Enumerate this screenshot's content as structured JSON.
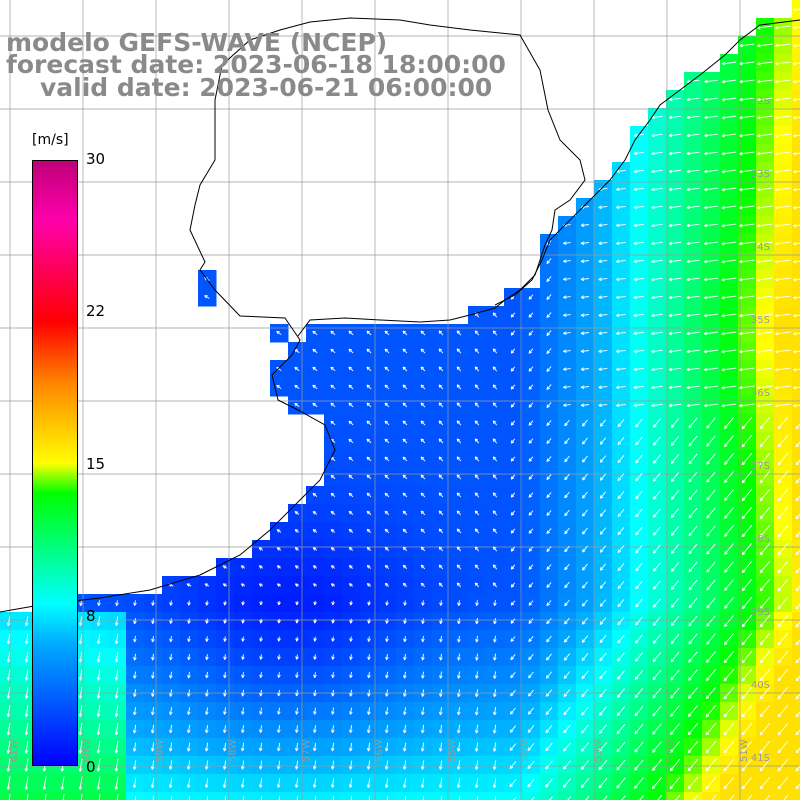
{
  "title": {
    "line1": "modelo GEFS-WAVE (NCEP)",
    "line2": "forecast date: 2023-06-18 18:00:00",
    "line3": "valid date: 2023-06-21 06:00:00"
  },
  "colorbar": {
    "units": "[m/s]",
    "ticks": [
      "30",
      "22",
      "15",
      "8",
      "0"
    ],
    "tick_values": [
      30,
      22,
      15,
      8,
      0
    ],
    "range": [
      0,
      30
    ],
    "colors": [
      "#0000ff",
      "#00aaff",
      "#00ffff",
      "#00ff00",
      "#ffff00",
      "#ff8800",
      "#ff0000",
      "#ff00aa",
      "#c0007a"
    ]
  },
  "latitude_labels": [
    "32S",
    "33S",
    "34S",
    "35S",
    "36S",
    "37S",
    "38S",
    "39S",
    "40S",
    "41S"
  ],
  "longitude_labels": [
    "61W",
    "60W",
    "59W",
    "58W",
    "57W",
    "56W",
    "55W",
    "54W",
    "53W",
    "52W",
    "51W"
  ],
  "colors": {
    "land": "#ffffff",
    "coast": "#000000",
    "grid": "#9a9a9a",
    "arrow": "#ffffff"
  }
}
